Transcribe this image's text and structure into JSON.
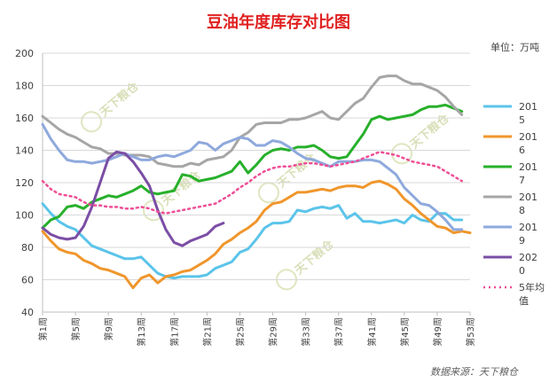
{
  "chart_data": {
    "type": "line",
    "title": "豆油年度库存对比图",
    "unit_label": "单位：万吨",
    "source": "数据来源：天下粮仓",
    "watermark": "天下粮仓",
    "ylim": [
      40,
      200
    ],
    "yticks": [
      40,
      60,
      80,
      100,
      120,
      140,
      160,
      180,
      200
    ],
    "grid": true,
    "legend_position": "right",
    "x_tick_labels": [
      "第1周",
      "第5周",
      "第9周",
      "第13周",
      "第17周",
      "第21周",
      "第25周",
      "第29周",
      "第33周",
      "第37周",
      "第41周",
      "第45周",
      "第49周",
      "第53周"
    ],
    "x_tick_weeks": [
      1,
      5,
      9,
      13,
      17,
      21,
      25,
      29,
      33,
      37,
      41,
      45,
      49,
      53
    ],
    "xlim": [
      1,
      53
    ],
    "series": [
      {
        "name": "2015",
        "color": "#5bc4ea",
        "x": [
          1,
          2,
          3,
          4,
          5,
          6,
          7,
          8,
          9,
          10,
          11,
          12,
          13,
          14,
          15,
          16,
          17,
          18,
          19,
          20,
          21,
          22,
          23,
          24,
          25,
          26,
          27,
          28,
          29,
          30,
          31,
          32,
          33,
          34,
          35,
          36,
          37,
          38,
          39,
          40,
          41,
          42,
          43,
          44,
          45,
          46,
          47,
          48,
          49,
          50,
          51,
          52
        ],
        "values": [
          107,
          101,
          96,
          93,
          91,
          86,
          81,
          79,
          77,
          75,
          73,
          73,
          74,
          69,
          64,
          62,
          61,
          62,
          62,
          62,
          63,
          67,
          69,
          71,
          77,
          79,
          85,
          92,
          95,
          95,
          96,
          103,
          102,
          104,
          105,
          104,
          106,
          98,
          101,
          96,
          96,
          95,
          96,
          97,
          95,
          100,
          97,
          96,
          101,
          101,
          97,
          97
        ]
      },
      {
        "name": "2016",
        "color": "#f0962c",
        "x": [
          1,
          2,
          3,
          4,
          5,
          6,
          7,
          8,
          9,
          10,
          11,
          12,
          13,
          14,
          15,
          16,
          17,
          18,
          19,
          20,
          21,
          22,
          23,
          24,
          25,
          26,
          27,
          28,
          29,
          30,
          31,
          32,
          33,
          34,
          35,
          36,
          37,
          38,
          39,
          40,
          41,
          42,
          43,
          44,
          45,
          46,
          47,
          48,
          49,
          50,
          51,
          52,
          53
        ],
        "values": [
          90,
          84,
          79,
          77,
          76,
          72,
          70,
          67,
          66,
          64,
          62,
          55,
          61,
          63,
          58,
          62,
          63,
          65,
          66,
          69,
          72,
          76,
          82,
          85,
          89,
          92,
          96,
          103,
          107,
          108,
          111,
          114,
          114,
          115,
          116,
          115,
          117,
          118,
          118,
          117,
          120,
          121,
          119,
          116,
          110,
          106,
          101,
          97,
          93,
          92,
          89,
          90,
          89
        ]
      },
      {
        "name": "2017",
        "color": "#27b02b",
        "x": [
          1,
          2,
          3,
          4,
          5,
          6,
          7,
          8,
          9,
          10,
          11,
          12,
          13,
          14,
          15,
          16,
          17,
          18,
          19,
          20,
          21,
          22,
          23,
          24,
          25,
          26,
          27,
          28,
          29,
          30,
          31,
          32,
          33,
          34,
          35,
          36,
          37,
          38,
          39,
          40,
          41,
          42,
          43,
          44,
          45,
          46,
          47,
          48,
          49,
          50,
          51,
          52
        ],
        "values": [
          92,
          97,
          99,
          105,
          106,
          104,
          108,
          110,
          112,
          111,
          113,
          115,
          118,
          114,
          113,
          114,
          115,
          125,
          124,
          121,
          122,
          123,
          125,
          127,
          133,
          126,
          131,
          137,
          140,
          141,
          140,
          142,
          142,
          143,
          140,
          136,
          135,
          136,
          143,
          150,
          159,
          161,
          159,
          160,
          161,
          162,
          165,
          167,
          167,
          168,
          166,
          164
        ]
      },
      {
        "name": "2018",
        "color": "#a6a6a6",
        "x": [
          1,
          2,
          3,
          4,
          5,
          6,
          7,
          8,
          9,
          10,
          11,
          12,
          13,
          14,
          15,
          16,
          17,
          18,
          19,
          20,
          21,
          22,
          23,
          24,
          25,
          26,
          27,
          28,
          29,
          30,
          31,
          32,
          33,
          34,
          35,
          36,
          37,
          38,
          39,
          40,
          41,
          42,
          43,
          44,
          45,
          46,
          47,
          48,
          49,
          50,
          51,
          52
        ],
        "values": [
          161,
          157,
          153,
          150,
          148,
          145,
          142,
          141,
          138,
          138,
          137,
          137,
          137,
          136,
          132,
          131,
          130,
          130,
          132,
          131,
          134,
          135,
          136,
          140,
          148,
          151,
          156,
          157,
          157,
          157,
          159,
          159,
          160,
          162,
          164,
          160,
          159,
          164,
          169,
          172,
          179,
          185,
          186,
          186,
          183,
          181,
          181,
          179,
          177,
          173,
          167,
          162
        ]
      },
      {
        "name": "2019",
        "color": "#8ea9dd",
        "x": [
          1,
          2,
          3,
          4,
          5,
          6,
          7,
          8,
          9,
          10,
          11,
          12,
          13,
          14,
          15,
          16,
          17,
          18,
          19,
          20,
          21,
          22,
          23,
          24,
          25,
          26,
          27,
          28,
          29,
          30,
          31,
          32,
          33,
          34,
          35,
          36,
          37,
          38,
          39,
          40,
          41,
          42,
          43,
          44,
          45,
          46,
          47,
          48,
          49,
          50,
          51,
          52
        ],
        "values": [
          156,
          147,
          140,
          134,
          133,
          133,
          132,
          133,
          134,
          136,
          138,
          136,
          134,
          134,
          136,
          137,
          136,
          138,
          140,
          145,
          144,
          140,
          144,
          146,
          148,
          147,
          143,
          143,
          146,
          145,
          142,
          138,
          135,
          134,
          132,
          130,
          133,
          133,
          133,
          134,
          134,
          133,
          129,
          125,
          117,
          112,
          107,
          106,
          102,
          97,
          91,
          91
        ]
      },
      {
        "name": "2020",
        "color": "#7b4ea5",
        "x": [
          1,
          2,
          3,
          4,
          5,
          6,
          7,
          8,
          9,
          10,
          11,
          12,
          13,
          14,
          15,
          16,
          17,
          18,
          19,
          20,
          21,
          22,
          23
        ],
        "values": [
          92,
          88,
          86,
          85,
          86,
          93,
          105,
          120,
          135,
          139,
          138,
          133,
          126,
          118,
          103,
          91,
          83,
          81,
          84,
          86,
          88,
          93,
          95
        ]
      },
      {
        "name": "5年均值",
        "color": "#ee4e96",
        "dashed": true,
        "x": [
          1,
          2,
          3,
          4,
          5,
          6,
          7,
          8,
          9,
          10,
          11,
          12,
          13,
          14,
          15,
          16,
          17,
          18,
          19,
          20,
          21,
          22,
          23,
          24,
          25,
          26,
          27,
          28,
          29,
          30,
          31,
          32,
          33,
          34,
          35,
          36,
          37,
          38,
          39,
          40,
          41,
          42,
          43,
          44,
          45,
          46,
          47,
          48,
          49,
          50,
          51,
          52
        ],
        "values": [
          121,
          116,
          113,
          112,
          111,
          108,
          106,
          106,
          105,
          105,
          104,
          104,
          105,
          104,
          102,
          101,
          102,
          103,
          104,
          105,
          106,
          107,
          110,
          113,
          117,
          120,
          124,
          127,
          129,
          130,
          130,
          131,
          132,
          132,
          131,
          130,
          131,
          132,
          133,
          135,
          137,
          139,
          138,
          137,
          135,
          133,
          132,
          131,
          130,
          127,
          124,
          121
        ]
      }
    ]
  }
}
